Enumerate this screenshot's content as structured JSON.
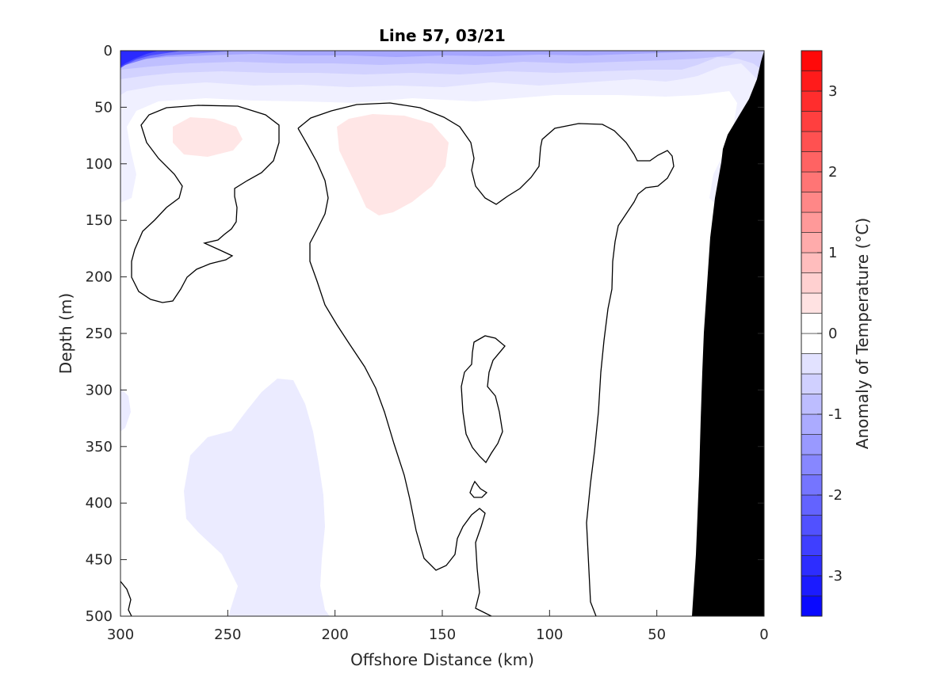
{
  "chart_data": {
    "type": "contour",
    "title": "Line 57, 03/21",
    "xlabel": "Offshore Distance (km)",
    "ylabel": "Depth (m)",
    "colorbar_label": "Anomaly of Temperature (°C)",
    "xlim": [
      300,
      0
    ],
    "x_reversed": true,
    "ylim": [
      0,
      500
    ],
    "y_reversed": true,
    "x_ticks": [
      300,
      250,
      200,
      150,
      100,
      50,
      0
    ],
    "y_ticks": [
      0,
      50,
      100,
      150,
      200,
      250,
      300,
      350,
      400,
      450,
      500
    ],
    "colorbar_range": [
      -3.5,
      3.5
    ],
    "colorbar_step": 0.25,
    "colorbar_ticks": [
      -3,
      -2,
      -1,
      0,
      1,
      2,
      3
    ],
    "colors": {
      "bathymetry": "#000000",
      "positive_max": "#ff0000",
      "negative_max": "#0000ff",
      "zero": "#ffffff",
      "contour_line": "#000000"
    },
    "features": [
      {
        "kind": "cold_anomaly",
        "value": -2.75,
        "x": [
          300,
          255,
          200,
          150,
          100,
          50,
          15
        ],
        "y": [
          0,
          8,
          10,
          5,
          8,
          5,
          10
        ]
      },
      {
        "kind": "cold_anomaly",
        "value": -0.25,
        "x": [
          300,
          150,
          50,
          20
        ],
        "y": [
          30,
          35,
          35,
          150
        ]
      },
      {
        "kind": "warm_anomaly",
        "value": 0.25,
        "x": [
          263,
          270,
          252
        ],
        "y": [
          80,
          70,
          90
        ]
      },
      {
        "kind": "warm_anomaly",
        "value": 0.25,
        "x": [
          175,
          195,
          150
        ],
        "y": [
          100,
          70,
          80
        ]
      },
      {
        "kind": "cold_anomaly",
        "value": -0.25,
        "x": [
          240,
          220,
          200
        ],
        "y": [
          400,
          290,
          500
        ]
      },
      {
        "kind": "zero_contour",
        "value": 0,
        "x": [
          260,
          255,
          280,
          295
        ],
        "y": [
          60,
          110,
          180,
          220
        ]
      },
      {
        "kind": "zero_contour",
        "value": 0,
        "x": [
          190,
          150,
          100,
          80
        ],
        "y": [
          50,
          250,
          460,
          500
        ]
      },
      {
        "kind": "bathymetry",
        "x": [
          33,
          30,
          20,
          15,
          0
        ],
        "y": [
          500,
          340,
          190,
          150,
          35
        ]
      }
    ]
  }
}
